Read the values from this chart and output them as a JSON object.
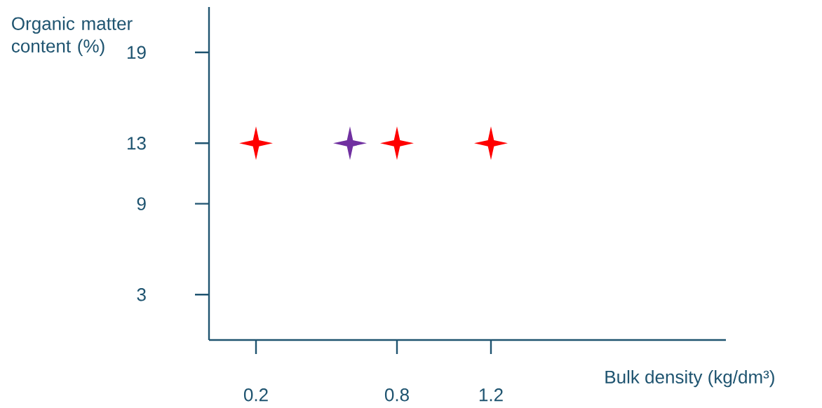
{
  "chart_data": {
    "type": "scatter",
    "xlabel": "Bulk density (kg/dm³)",
    "ylabel": "Organic matter content (%)",
    "xlim": [
      0,
      2.2
    ],
    "ylim": [
      0,
      22
    ],
    "xticks": [
      0.2,
      0.8,
      1.2
    ],
    "yticks": [
      3,
      9,
      13,
      19
    ],
    "marker": "star",
    "series": [
      {
        "color": "#ff0000",
        "x": [
          0.2,
          0.8,
          1.2
        ],
        "values": [
          13,
          13,
          13
        ]
      },
      {
        "color": "#7030a0",
        "x": [
          0.6
        ],
        "values": [
          13
        ]
      }
    ]
  }
}
